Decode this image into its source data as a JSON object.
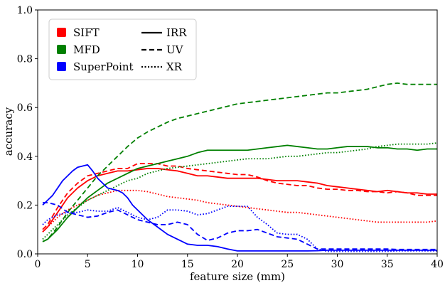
{
  "chart_data": {
    "type": "line",
    "xlabel": "feature size (mm)",
    "ylabel": "accuracy",
    "xlim": [
      0,
      40
    ],
    "ylim": [
      0,
      1
    ],
    "xticks": [
      0,
      5,
      10,
      15,
      20,
      25,
      30,
      35,
      40
    ],
    "yticks": [
      0.0,
      0.2,
      0.4,
      0.6,
      0.8,
      1.0
    ],
    "xtick_labels": [
      "0",
      "5",
      "10",
      "15",
      "20",
      "25",
      "30",
      "35",
      "40"
    ],
    "ytick_labels": [
      "0.0",
      "0.2",
      "0.4",
      "0.6",
      "0.8",
      "1.0"
    ],
    "grid": false,
    "legend_position": "top-left",
    "legend": {
      "methods": [
        {
          "name": "SIFT",
          "color": "#ff0000"
        },
        {
          "name": "MFD",
          "color": "#008000"
        },
        {
          "name": "SuperPoint",
          "color": "#0000ff"
        }
      ],
      "styles": [
        {
          "name": "IRR",
          "dash": "solid"
        },
        {
          "name": "UV",
          "dash": "dashed"
        },
        {
          "name": "XR",
          "dash": "dotted"
        }
      ]
    },
    "series": [
      {
        "method": "SIFT",
        "style": "IRR",
        "color": "#ff0000",
        "dash": "solid",
        "x": [
          0.5,
          1,
          2,
          3,
          4,
          5,
          6,
          7,
          8,
          9,
          10,
          11,
          12,
          13,
          14,
          15,
          16,
          17,
          18,
          19,
          20,
          21,
          22,
          23,
          24,
          25,
          26,
          27,
          28,
          29,
          30,
          31,
          32,
          33,
          34,
          35,
          36,
          37,
          38,
          39,
          40
        ],
        "y": [
          0.09,
          0.11,
          0.17,
          0.23,
          0.27,
          0.3,
          0.32,
          0.33,
          0.34,
          0.34,
          0.345,
          0.35,
          0.35,
          0.345,
          0.34,
          0.33,
          0.32,
          0.32,
          0.315,
          0.31,
          0.31,
          0.31,
          0.31,
          0.305,
          0.3,
          0.3,
          0.3,
          0.295,
          0.29,
          0.28,
          0.275,
          0.27,
          0.265,
          0.26,
          0.255,
          0.26,
          0.255,
          0.25,
          0.25,
          0.245,
          0.245
        ]
      },
      {
        "method": "SIFT",
        "style": "UV",
        "color": "#ff0000",
        "dash": "dashed",
        "x": [
          0.5,
          1,
          2,
          3,
          4,
          5,
          6,
          7,
          8,
          9,
          10,
          11,
          12,
          13,
          14,
          15,
          16,
          17,
          18,
          19,
          20,
          21,
          22,
          23,
          24,
          25,
          26,
          27,
          28,
          29,
          30,
          31,
          32,
          33,
          34,
          35,
          36,
          37,
          38,
          39,
          40
        ],
        "y": [
          0.1,
          0.12,
          0.19,
          0.25,
          0.29,
          0.32,
          0.33,
          0.34,
          0.35,
          0.35,
          0.37,
          0.37,
          0.37,
          0.36,
          0.36,
          0.35,
          0.345,
          0.34,
          0.335,
          0.33,
          0.325,
          0.325,
          0.315,
          0.3,
          0.29,
          0.285,
          0.28,
          0.28,
          0.27,
          0.265,
          0.265,
          0.26,
          0.26,
          0.255,
          0.255,
          0.25,
          0.255,
          0.25,
          0.24,
          0.24,
          0.24
        ]
      },
      {
        "method": "SIFT",
        "style": "XR",
        "color": "#ff0000",
        "dash": "dotted",
        "x": [
          0.5,
          1,
          2,
          3,
          4,
          5,
          6,
          7,
          8,
          9,
          10,
          11,
          12,
          13,
          14,
          15,
          16,
          17,
          18,
          19,
          20,
          21,
          22,
          23,
          24,
          25,
          26,
          27,
          28,
          29,
          30,
          31,
          32,
          33,
          34,
          35,
          36,
          37,
          38,
          39,
          40
        ],
        "y": [
          0.09,
          0.11,
          0.15,
          0.18,
          0.2,
          0.22,
          0.24,
          0.25,
          0.26,
          0.26,
          0.26,
          0.255,
          0.245,
          0.235,
          0.23,
          0.225,
          0.22,
          0.21,
          0.205,
          0.2,
          0.195,
          0.19,
          0.185,
          0.18,
          0.175,
          0.17,
          0.17,
          0.165,
          0.16,
          0.155,
          0.15,
          0.145,
          0.14,
          0.135,
          0.13,
          0.13,
          0.13,
          0.13,
          0.13,
          0.13,
          0.135
        ]
      },
      {
        "method": "MFD",
        "style": "IRR",
        "color": "#008000",
        "dash": "solid",
        "x": [
          0.5,
          1,
          2,
          3,
          4,
          5,
          6,
          7,
          8,
          9,
          10,
          11,
          12,
          13,
          14,
          15,
          16,
          17,
          18,
          19,
          20,
          21,
          22,
          23,
          24,
          25,
          26,
          27,
          28,
          29,
          30,
          31,
          32,
          33,
          34,
          35,
          36,
          37,
          38,
          39,
          40
        ],
        "y": [
          0.05,
          0.06,
          0.1,
          0.15,
          0.19,
          0.23,
          0.26,
          0.29,
          0.31,
          0.33,
          0.35,
          0.36,
          0.37,
          0.38,
          0.39,
          0.4,
          0.415,
          0.425,
          0.425,
          0.425,
          0.425,
          0.425,
          0.43,
          0.435,
          0.44,
          0.445,
          0.44,
          0.435,
          0.43,
          0.43,
          0.435,
          0.44,
          0.44,
          0.44,
          0.435,
          0.435,
          0.43,
          0.43,
          0.425,
          0.43,
          0.43
        ]
      },
      {
        "method": "MFD",
        "style": "UV",
        "color": "#008000",
        "dash": "dashed",
        "x": [
          0.5,
          1,
          2,
          3,
          4,
          5,
          6,
          7,
          8,
          9,
          10,
          11,
          12,
          13,
          14,
          15,
          16,
          17,
          18,
          19,
          20,
          21,
          22,
          23,
          24,
          25,
          26,
          27,
          28,
          29,
          30,
          31,
          32,
          33,
          34,
          35,
          36,
          37,
          38,
          39,
          40
        ],
        "y": [
          0.05,
          0.06,
          0.11,
          0.17,
          0.22,
          0.27,
          0.32,
          0.36,
          0.4,
          0.44,
          0.475,
          0.5,
          0.52,
          0.54,
          0.555,
          0.565,
          0.575,
          0.585,
          0.595,
          0.605,
          0.615,
          0.62,
          0.625,
          0.63,
          0.635,
          0.64,
          0.645,
          0.65,
          0.655,
          0.66,
          0.66,
          0.665,
          0.67,
          0.675,
          0.685,
          0.695,
          0.7,
          0.695,
          0.695,
          0.695,
          0.695
        ]
      },
      {
        "method": "MFD",
        "style": "XR",
        "color": "#008000",
        "dash": "dotted",
        "x": [
          0.5,
          1,
          2,
          3,
          4,
          5,
          6,
          7,
          8,
          9,
          10,
          11,
          12,
          13,
          14,
          15,
          16,
          17,
          18,
          19,
          20,
          21,
          22,
          23,
          24,
          25,
          26,
          27,
          28,
          29,
          30,
          31,
          32,
          33,
          34,
          35,
          36,
          37,
          38,
          39,
          40
        ],
        "y": [
          0.06,
          0.08,
          0.12,
          0.16,
          0.19,
          0.22,
          0.24,
          0.26,
          0.28,
          0.3,
          0.31,
          0.33,
          0.34,
          0.35,
          0.355,
          0.36,
          0.365,
          0.37,
          0.375,
          0.38,
          0.385,
          0.39,
          0.39,
          0.39,
          0.395,
          0.4,
          0.4,
          0.405,
          0.41,
          0.415,
          0.415,
          0.42,
          0.425,
          0.43,
          0.44,
          0.445,
          0.45,
          0.45,
          0.45,
          0.45,
          0.455
        ]
      },
      {
        "method": "SuperPoint",
        "style": "IRR",
        "color": "#0000ff",
        "dash": "solid",
        "x": [
          0.5,
          1,
          1.5,
          2,
          2.5,
          3,
          3.5,
          4,
          4.5,
          5,
          5.5,
          6,
          6.5,
          7,
          7.5,
          8,
          8.5,
          9,
          9.5,
          10,
          10.5,
          11,
          12,
          13,
          14,
          15,
          16,
          17,
          18,
          19,
          20,
          21,
          22,
          23,
          24,
          25,
          26,
          27,
          28,
          29,
          30,
          31,
          32,
          33,
          34,
          35,
          36,
          37,
          38,
          39,
          40
        ],
        "y": [
          0.2,
          0.22,
          0.24,
          0.27,
          0.3,
          0.32,
          0.34,
          0.355,
          0.36,
          0.365,
          0.34,
          0.31,
          0.29,
          0.27,
          0.265,
          0.26,
          0.25,
          0.23,
          0.2,
          0.18,
          0.16,
          0.14,
          0.11,
          0.08,
          0.06,
          0.04,
          0.035,
          0.035,
          0.03,
          0.02,
          0.012,
          0.012,
          0.012,
          0.012,
          0.012,
          0.012,
          0.012,
          0.012,
          0.013,
          0.015,
          0.015,
          0.015,
          0.015,
          0.015,
          0.015,
          0.015,
          0.015,
          0.015,
          0.015,
          0.015,
          0.015
        ]
      },
      {
        "method": "SuperPoint",
        "style": "UV",
        "color": "#0000ff",
        "dash": "dashed",
        "x": [
          0.5,
          1,
          2,
          3,
          4,
          5,
          6,
          7,
          8,
          9,
          10,
          11,
          12,
          13,
          14,
          15,
          16,
          17,
          18,
          19,
          20,
          21,
          22,
          23,
          24,
          25,
          26,
          27,
          28,
          29,
          30,
          31,
          32,
          33,
          34,
          35,
          36,
          37,
          38,
          39,
          40
        ],
        "y": [
          0.21,
          0.21,
          0.2,
          0.17,
          0.16,
          0.15,
          0.155,
          0.17,
          0.18,
          0.16,
          0.14,
          0.13,
          0.12,
          0.12,
          0.13,
          0.12,
          0.08,
          0.055,
          0.065,
          0.085,
          0.095,
          0.095,
          0.1,
          0.085,
          0.07,
          0.065,
          0.06,
          0.04,
          0.02,
          0.02,
          0.02,
          0.02,
          0.02,
          0.02,
          0.02,
          0.02,
          0.018,
          0.018,
          0.018,
          0.018,
          0.018
        ]
      },
      {
        "method": "SuperPoint",
        "style": "XR",
        "color": "#0000ff",
        "dash": "dotted",
        "x": [
          0.5,
          1,
          2,
          3,
          4,
          5,
          6,
          7,
          8,
          9,
          10,
          11,
          12,
          13,
          14,
          15,
          16,
          17,
          18,
          19,
          20,
          21,
          22,
          23,
          24,
          25,
          26,
          27,
          28,
          29,
          30,
          31,
          32,
          33,
          34,
          35,
          36,
          37,
          38,
          39,
          40
        ],
        "y": [
          0.12,
          0.14,
          0.16,
          0.17,
          0.17,
          0.18,
          0.175,
          0.175,
          0.19,
          0.17,
          0.15,
          0.14,
          0.15,
          0.18,
          0.18,
          0.175,
          0.16,
          0.165,
          0.18,
          0.195,
          0.195,
          0.195,
          0.15,
          0.12,
          0.085,
          0.08,
          0.08,
          0.06,
          0.02,
          0.01,
          0.01,
          0.01,
          0.01,
          0.01,
          0.01,
          0.01,
          0.012,
          0.012,
          0.012,
          0.012,
          0.012
        ]
      }
    ]
  }
}
